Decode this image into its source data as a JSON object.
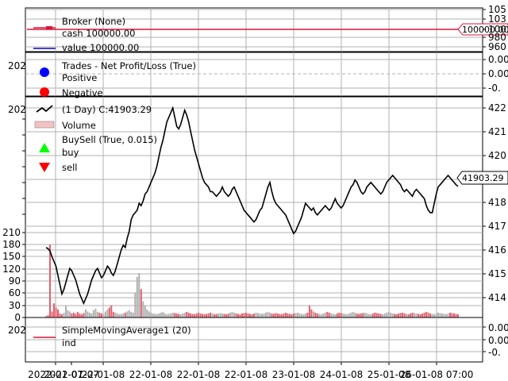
{
  "chart_data": [
    {
      "panel": "broker",
      "type": "line",
      "title": "Broker (None)",
      "series": [
        {
          "name": "cash",
          "legend": "cash 100000.00",
          "color": "#dc143c",
          "value": 100000.0
        },
        {
          "name": "value",
          "legend": "value 100000.00",
          "color": "#0000cd",
          "value": 100000.0
        }
      ],
      "value_tag": "100000.00",
      "y_ticks": [
        "105",
        "103",
        "100",
        "980",
        "960"
      ]
    },
    {
      "panel": "trades",
      "type": "scatter",
      "title": "Trades - Net Profit/Loss (True)",
      "series": [
        {
          "name": "Positive",
          "color": "#0000ff",
          "values": []
        },
        {
          "name": "Negative",
          "color": "#ff0000",
          "values": []
        }
      ],
      "y_ticks": [
        "0.00",
        "0.00",
        "-0."
      ],
      "left_label": "202"
    },
    {
      "panel": "price",
      "type": "line",
      "title": "(1 Day) C:41903.29",
      "last_value": 41903.29,
      "value_tag": "41903.29",
      "legend": [
        {
          "label": "(1 Day) C:41903.29",
          "marker": "line",
          "color": "#000000"
        },
        {
          "label": "Volume",
          "marker": "bar",
          "color": "#f4c2c2"
        },
        {
          "label": "BuySell (True, 0.015)",
          "marker": "none"
        },
        {
          "label": "buy",
          "marker": "triangle-up",
          "color": "#00ff00"
        },
        {
          "label": "sell",
          "marker": "triangle-down",
          "color": "#ff0000"
        }
      ],
      "y_ticks_right": [
        "422",
        "421",
        "420",
        "418",
        "417",
        "416",
        "415",
        "414"
      ],
      "volume_ticks": [
        "210",
        "180",
        "150",
        "120",
        "90",
        "60",
        "30",
        "0"
      ],
      "left_label": "202",
      "close_series": [
        41640,
        41635,
        41625,
        41600,
        41580,
        41560,
        41520,
        41480,
        41440,
        41460,
        41490,
        41520,
        41550,
        41540,
        41520,
        41500,
        41470,
        41440,
        41420,
        41400,
        41420,
        41440,
        41470,
        41500,
        41520,
        41540,
        41550,
        41530,
        41510,
        41520,
        41540,
        41560,
        41550,
        41530,
        41520,
        41540,
        41570,
        41600,
        41630,
        41650,
        41640,
        41680,
        41710,
        41760,
        41780,
        41790,
        41800,
        41830,
        41820,
        41840,
        41870,
        41880,
        41900,
        41920,
        41940,
        41960,
        41990,
        42030,
        42070,
        42100,
        42140,
        42180,
        42200,
        42220,
        42240,
        42200,
        42160,
        42150,
        42170,
        42200,
        42230,
        42210,
        42180,
        42140,
        42100,
        42060,
        42030,
        42000,
        41970,
        41940,
        41920,
        41910,
        41900,
        41880,
        41880,
        41870,
        41860,
        41870,
        41880,
        41900,
        41880,
        41870,
        41860,
        41870,
        41890,
        41900,
        41880,
        41860,
        41840,
        41820,
        41800,
        41790,
        41780,
        41770,
        41760,
        41750,
        41760,
        41780,
        41800,
        41810,
        41840,
        41870,
        41900,
        41920,
        41880,
        41850,
        41830,
        41820,
        41810,
        41800,
        41790,
        41780,
        41760,
        41740,
        41720,
        41700,
        41710,
        41730,
        41750,
        41770,
        41800,
        41830,
        41820,
        41810,
        41800,
        41810,
        41790,
        41780,
        41790,
        41800,
        41810,
        41820,
        41810,
        41800,
        41810,
        41830,
        41850,
        41830,
        41820,
        41810,
        41820,
        41840,
        41860,
        41880,
        41900,
        41910,
        41930,
        41920,
        41900,
        41880,
        41870,
        41880,
        41900,
        41910,
        41920,
        41910,
        41900,
        41890,
        41880,
        41870,
        41880,
        41900,
        41920,
        41930,
        41940,
        41950,
        41940,
        41930,
        41920,
        41910,
        41890,
        41880,
        41890,
        41880,
        41870,
        41860,
        41880,
        41890,
        41880,
        41870,
        41860,
        41850,
        41820,
        41800,
        41790,
        41790,
        41830,
        41870,
        41900,
        41910,
        41920,
        41930,
        41940,
        41950,
        41940,
        41930,
        41920,
        41910,
        41903.29
      ],
      "volume_series": [
        4,
        6,
        180,
        15,
        35,
        25,
        20,
        10,
        8,
        12,
        30,
        18,
        15,
        10,
        12,
        9,
        14,
        10,
        8,
        11,
        20,
        15,
        12,
        10,
        18,
        22,
        14,
        12,
        10,
        9,
        15,
        20,
        25,
        30,
        14,
        12,
        10,
        8,
        9,
        10,
        12,
        15,
        18,
        14,
        12,
        60,
        100,
        110,
        70,
        40,
        30,
        20,
        15,
        12,
        10,
        9,
        8,
        10,
        12,
        14,
        10,
        8,
        9,
        10,
        12,
        11,
        10,
        9,
        8,
        10,
        12,
        14,
        12,
        10,
        9,
        8,
        10,
        12,
        10,
        9,
        8,
        9,
        10,
        12,
        10,
        8,
        9,
        10,
        11,
        10,
        9,
        8,
        10,
        12,
        14,
        12,
        10,
        9,
        8,
        10,
        11,
        12,
        10,
        9,
        8,
        10,
        12,
        11,
        10,
        9,
        10,
        12,
        14,
        12,
        10,
        9,
        11,
        10,
        9,
        8,
        10,
        12,
        10,
        9,
        8,
        10,
        11,
        12,
        10,
        9,
        8,
        10,
        12,
        30,
        20,
        15,
        12,
        10,
        9,
        8,
        10,
        12,
        14,
        12,
        10,
        9,
        8,
        10,
        12,
        11,
        10,
        9,
        8,
        10,
        12,
        14,
        12,
        10,
        9,
        10,
        11,
        12,
        10,
        9,
        8,
        10,
        12,
        11,
        10,
        9,
        8,
        10,
        12,
        14,
        12,
        10,
        9,
        8,
        10,
        11,
        12,
        10,
        9,
        8,
        10,
        12,
        11,
        10,
        9,
        8,
        10,
        12,
        14,
        12,
        10,
        9,
        8,
        10,
        12,
        11,
        10,
        9,
        8,
        10,
        12,
        11,
        10,
        9,
        8
      ]
    },
    {
      "panel": "sma",
      "type": "line",
      "title": "SimpleMovingAverage1 (20)",
      "series": [
        {
          "name": "ind",
          "color": "#dc143c",
          "values": []
        }
      ],
      "y_ticks": [
        "0.00",
        "0.00",
        "-0."
      ],
      "left_label": "202"
    }
  ],
  "x_axis": {
    "tick_labels": [
      "2022-01-07",
      "2022-01-07",
      "22-01-08",
      "22-01-08",
      "22-01-08",
      "22-01-08",
      "23-01-08",
      "24-01-08",
      "25-01-08",
      "26-01-08 07:00"
    ]
  }
}
